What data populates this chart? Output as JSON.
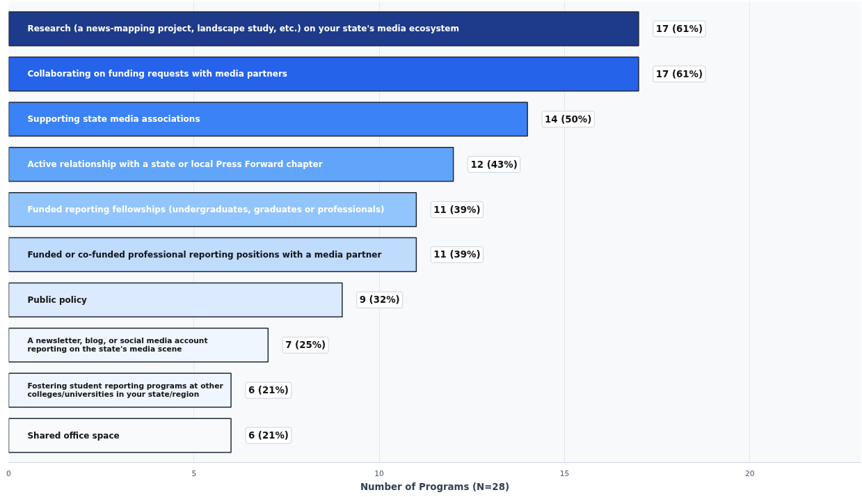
{
  "chart_data": {
    "type": "bar",
    "orientation": "horizontal",
    "xlabel": "Number of Programs (N=28)",
    "categories": [
      "Research (a news-mapping project, landscape study, etc.) on your state's media ecosystem",
      "Collaborating on funding requests with media partners",
      "Supporting state media associations",
      "Active relationship with a state or local Press Forward chapter",
      "Funded reporting fellowships (undergraduates, graduates or professionals)",
      "Funded or co-funded professional reporting positions with a media partner",
      "Public policy",
      "A newsletter, blog, or social media account\nreporting on the state's media scene",
      "Fostering student reporting programs at other\ncolleges/universities in your state/region",
      "Shared office space"
    ],
    "values": [
      17,
      17,
      14,
      12,
      11,
      11,
      9,
      7,
      6,
      6
    ],
    "colors": [
      "#1e3a8a",
      "#2563eb",
      "#3b82f6",
      "#60a5fa",
      "#93c5fd",
      "#bfdbfe",
      "#dbeafe",
      "#eff6ff",
      "#eff6ff",
      "#f8fafc"
    ],
    "value_labels": [
      "17 (61%)",
      "17 (61%)",
      "14 (50%)",
      "12 (43%)",
      "11 (39%)",
      "11 (39%)",
      "9 (32%)",
      "7 (25%)",
      "6 (21%)",
      "6 (21%)"
    ],
    "xlim": [
      0,
      23
    ],
    "xticks": [
      0,
      5,
      10,
      15,
      20
    ],
    "grid": "x"
  }
}
